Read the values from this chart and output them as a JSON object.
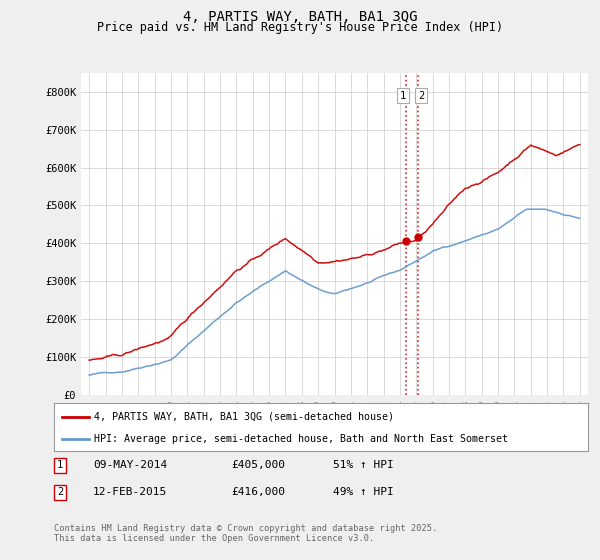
{
  "title": "4, PARTIS WAY, BATH, BA1 3QG",
  "subtitle": "Price paid vs. HM Land Registry's House Price Index (HPI)",
  "legend_line1": "4, PARTIS WAY, BATH, BA1 3QG (semi-detached house)",
  "legend_line2": "HPI: Average price, semi-detached house, Bath and North East Somerset",
  "footnote": "Contains HM Land Registry data © Crown copyright and database right 2025.\nThis data is licensed under the Open Government Licence v3.0.",
  "transaction1_date": "09-MAY-2014",
  "transaction1_price": "£405,000",
  "transaction1_hpi": "51% ↑ HPI",
  "transaction2_date": "12-FEB-2015",
  "transaction2_price": "£416,000",
  "transaction2_hpi": "49% ↑ HPI",
  "vline1_x": 2014.36,
  "vline2_x": 2015.12,
  "ylim": [
    0,
    850000
  ],
  "xlim": [
    1994.5,
    2025.5
  ],
  "yticks": [
    0,
    100000,
    200000,
    300000,
    400000,
    500000,
    600000,
    700000,
    800000
  ],
  "ytick_labels": [
    "£0",
    "£100K",
    "£200K",
    "£300K",
    "£400K",
    "£500K",
    "£600K",
    "£700K",
    "£800K"
  ],
  "xticks": [
    1995,
    1996,
    1997,
    1998,
    1999,
    2000,
    2001,
    2002,
    2003,
    2004,
    2005,
    2006,
    2007,
    2008,
    2009,
    2010,
    2011,
    2012,
    2013,
    2014,
    2015,
    2016,
    2017,
    2018,
    2019,
    2020,
    2021,
    2022,
    2023,
    2024,
    2025
  ],
  "red_color": "#cc0000",
  "blue_color": "#6699cc",
  "background_color": "#efefef",
  "plot_bg_color": "#ffffff",
  "marker1_x": 2014.36,
  "marker1_y": 405000,
  "marker2_x": 2015.12,
  "marker2_y": 416000
}
